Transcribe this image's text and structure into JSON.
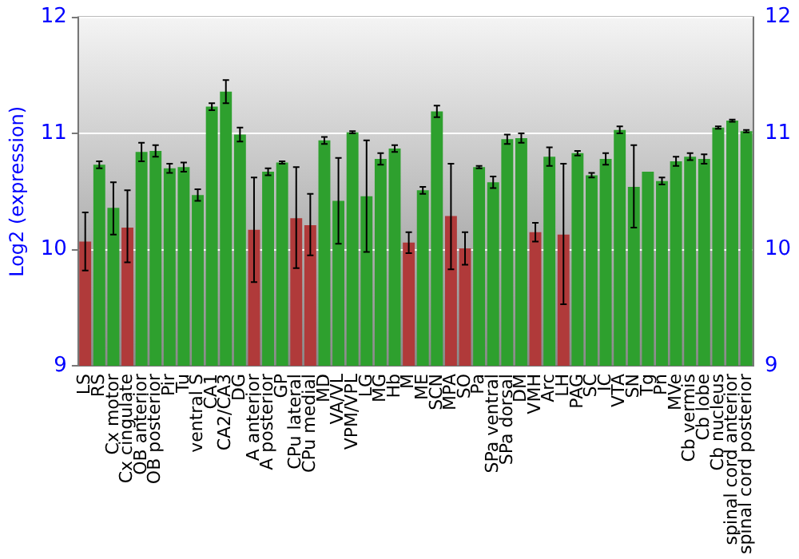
{
  "chart_data": {
    "type": "bar",
    "ylabel": "Log2 (expression)",
    "categories": [
      "LS",
      "RS",
      "Cx motor",
      "Cx cingulate",
      "OB anterior",
      "OB posterior",
      "Pir",
      "Tu",
      "ventral S",
      "CA1",
      "CA2/CA3",
      "DG",
      "A anterior",
      "A posterior",
      "GP",
      "CPu lateral",
      "CPu medial",
      "MD",
      "VA/VL",
      "VPM/VPL",
      "LG",
      "MG",
      "Hb",
      "M",
      "ME",
      "SCN",
      "MPA",
      "SO",
      "Pa",
      "SPa ventral",
      "SPa dorsal",
      "DM",
      "VMH",
      "Arc",
      "LH",
      "PAG",
      "SC",
      "IC",
      "VTA",
      "SN",
      "Tg",
      "Pn",
      "MVe",
      "Cb vermis",
      "Cb lobe",
      "Cb nucleus",
      "spinal cord anterior",
      "spinal cord posterior"
    ],
    "values": [
      10.07,
      10.73,
      10.36,
      10.19,
      10.84,
      10.85,
      10.7,
      10.71,
      10.47,
      11.23,
      11.36,
      10.99,
      10.17,
      10.67,
      10.75,
      10.27,
      10.21,
      10.94,
      10.42,
      11.01,
      10.46,
      10.78,
      10.87,
      10.06,
      10.51,
      11.19,
      10.29,
      10.01,
      10.71,
      10.58,
      10.95,
      10.96,
      10.15,
      10.8,
      10.13,
      10.83,
      10.64,
      10.78,
      11.03,
      10.54,
      10.67,
      10.59,
      10.76,
      10.8,
      10.78,
      11.05,
      11.11,
      11.02
    ],
    "errors": [
      [
        9.82,
        10.32
      ],
      0.03,
      [
        10.13,
        10.58
      ],
      [
        9.89,
        10.51
      ],
      0.08,
      0.05,
      0.04,
      0.04,
      0.05,
      0.03,
      0.1,
      0.06,
      [
        9.72,
        10.62
      ],
      0.03,
      0.01,
      [
        9.84,
        10.71
      ],
      [
        9.95,
        10.48
      ],
      0.03,
      [
        10.05,
        10.79
      ],
      0.01,
      [
        9.98,
        10.94
      ],
      0.05,
      0.03,
      0.09,
      0.03,
      0.05,
      [
        9.83,
        10.74
      ],
      0.14,
      0.01,
      0.05,
      0.04,
      0.04,
      0.08,
      0.08,
      [
        9.53,
        10.74
      ],
      0.02,
      0.02,
      0.05,
      0.03,
      [
        10.19,
        10.9
      ],
      null,
      0.03,
      0.04,
      0.03,
      0.04,
      0.01,
      0.01,
      0.01
    ],
    "colors": [
      "#b03a3a",
      "#2ea02e",
      "#2ea02e",
      "#b03a3a",
      "#2ea02e",
      "#2ea02e",
      "#2ea02e",
      "#2ea02e",
      "#2ea02e",
      "#2ea02e",
      "#2ea02e",
      "#2ea02e",
      "#b03a3a",
      "#2ea02e",
      "#2ea02e",
      "#b03a3a",
      "#b03a3a",
      "#2ea02e",
      "#2ea02e",
      "#2ea02e",
      "#2ea02e",
      "#2ea02e",
      "#2ea02e",
      "#b03a3a",
      "#2ea02e",
      "#2ea02e",
      "#b03a3a",
      "#b03a3a",
      "#2ea02e",
      "#2ea02e",
      "#2ea02e",
      "#2ea02e",
      "#b03a3a",
      "#2ea02e",
      "#b03a3a",
      "#2ea02e",
      "#2ea02e",
      "#2ea02e",
      "#2ea02e",
      "#2ea02e",
      "#2ea02e",
      "#2ea02e",
      "#2ea02e",
      "#2ea02e",
      "#2ea02e",
      "#2ea02e",
      "#2ea02e",
      "#2ea02e"
    ],
    "ylim": [
      9,
      12
    ],
    "yticks": [
      9,
      10,
      11,
      12
    ],
    "y2lim": [
      9,
      12
    ],
    "y2ticks": [
      9,
      10,
      11,
      12
    ],
    "grid": "y",
    "legend": false
  }
}
